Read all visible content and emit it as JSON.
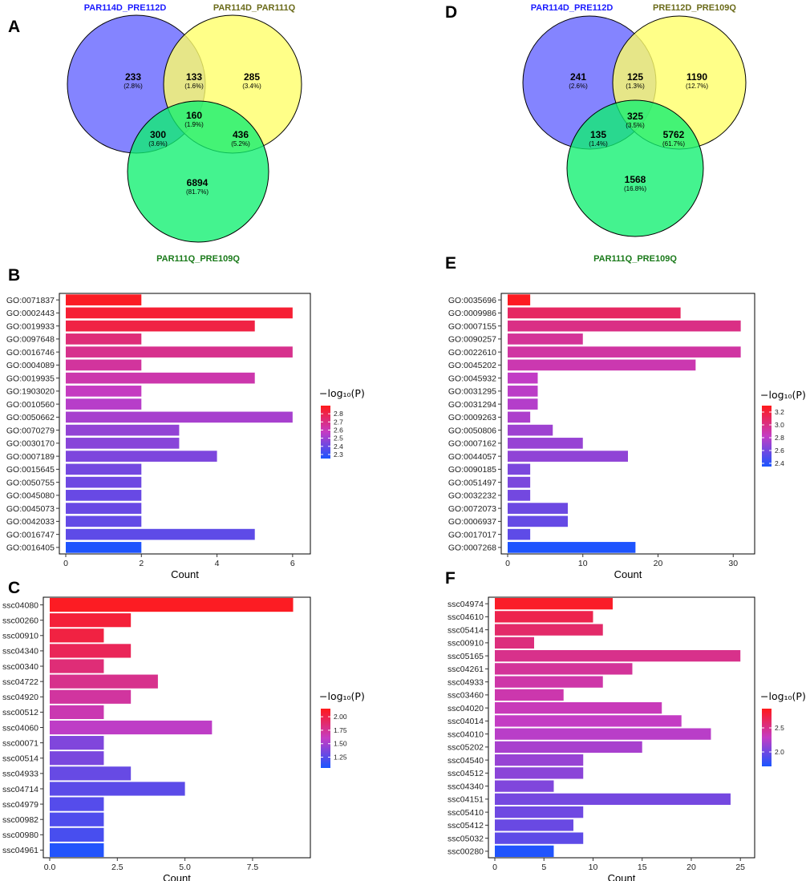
{
  "panel_letters": {
    "A": "A",
    "B": "B",
    "C": "C",
    "D": "D",
    "E": "E",
    "F": "F"
  },
  "colors": {
    "venn_blue": "#7b7bff",
    "venn_yellow": "#ffff80",
    "venn_green": "#1ff57a",
    "label_blue": "#1a1aff",
    "label_olive": "#6b6b1a",
    "label_green": "#1a7a1a",
    "grad_high": "#ff1a1a",
    "grad_mid": "#c43cc4",
    "grad_low": "#1a55ff"
  },
  "legend_title": "−log₁₀(P)",
  "chart_data": [
    {
      "type": "venn",
      "panel": "A",
      "sets": [
        "PAR114D_PRE112D",
        "PAR114D_PAR111Q",
        "PAR111Q_PRE109Q"
      ],
      "regions": {
        "a_only": {
          "count": "233",
          "pct": "(2.8%)"
        },
        "ab": {
          "count": "133",
          "pct": "(1.6%)"
        },
        "b_only": {
          "count": "285",
          "pct": "(3.4%)"
        },
        "ac": {
          "count": "300",
          "pct": "(3.6%)"
        },
        "abc": {
          "count": "160",
          "pct": "(1.9%)"
        },
        "bc": {
          "count": "436",
          "pct": "(5.2%)"
        },
        "c_only": {
          "count": "6894",
          "pct": "(81.7%)"
        }
      }
    },
    {
      "type": "venn",
      "panel": "D",
      "sets": [
        "PAR114D_PRE112D",
        "PRE112D_PRE109Q",
        "PAR111Q_PRE109Q"
      ],
      "regions": {
        "a_only": {
          "count": "241",
          "pct": "(2.6%)"
        },
        "ab": {
          "count": "125",
          "pct": "(1.3%)"
        },
        "b_only": {
          "count": "1190",
          "pct": "(12.7%)"
        },
        "ac": {
          "count": "135",
          "pct": "(1.4%)"
        },
        "abc": {
          "count": "325",
          "pct": "(3.5%)"
        },
        "bc": {
          "count": "5762",
          "pct": "(61.7%)"
        },
        "c_only": {
          "count": "1568",
          "pct": "(16.8%)"
        }
      }
    },
    {
      "type": "bar",
      "orientation": "horizontal",
      "panel": "B",
      "xlabel": "Count",
      "xlim": [
        0,
        6.3
      ],
      "xticks": [
        "0",
        "2",
        "4",
        "6"
      ],
      "xtick_values": [
        0,
        2,
        4,
        6
      ],
      "categories": [
        "GO:0071837",
        "GO:0002443",
        "GO:0019933",
        "GO:0097648",
        "GO:0016746",
        "GO:0004089",
        "GO:0019935",
        "GO:1903020",
        "GO:0010560",
        "GO:0050662",
        "GO:0070279",
        "GO:0030170",
        "GO:0007189",
        "GO:0015645",
        "GO:0050755",
        "GO:0045080",
        "GO:0045073",
        "GO:0042033",
        "GO:0016747",
        "GO:0016405"
      ],
      "values": [
        2,
        6,
        5,
        2,
        6,
        2,
        5,
        2,
        2,
        6,
        3,
        3,
        4,
        2,
        2,
        2,
        2,
        2,
        5,
        2
      ],
      "neglog10p": [
        2.88,
        2.85,
        2.82,
        2.72,
        2.68,
        2.65,
        2.62,
        2.58,
        2.55,
        2.52,
        2.48,
        2.46,
        2.44,
        2.42,
        2.41,
        2.4,
        2.4,
        2.39,
        2.38,
        2.26
      ],
      "color_range": [
        2.25,
        2.9
      ],
      "legend_ticks": [
        "2.8",
        "2.7",
        "2.6",
        "2.5",
        "2.4",
        "2.3"
      ],
      "legend_tick_values": [
        2.8,
        2.7,
        2.6,
        2.5,
        2.4,
        2.3
      ]
    },
    {
      "type": "bar",
      "orientation": "horizontal",
      "panel": "E",
      "xlabel": "Count",
      "xlim": [
        0,
        32
      ],
      "xticks": [
        "0",
        "10",
        "20",
        "30"
      ],
      "xtick_values": [
        0,
        10,
        20,
        30
      ],
      "categories": [
        "GO:0035696",
        "GO:0009986",
        "GO:0007155",
        "GO:0090257",
        "GO:0022610",
        "GO:0045202",
        "GO:0045932",
        "GO:0031295",
        "GO:0031294",
        "GO:0009263",
        "GO:0050806",
        "GO:0007162",
        "GO:0044057",
        "GO:0090185",
        "GO:0051497",
        "GO:0032232",
        "GO:0072073",
        "GO:0006937",
        "GO:0017017",
        "GO:0007268"
      ],
      "values": [
        3,
        23,
        31,
        10,
        31,
        25,
        4,
        4,
        4,
        3,
        6,
        10,
        16,
        3,
        3,
        3,
        8,
        8,
        3,
        17
      ],
      "neglog10p": [
        3.28,
        3.1,
        3.0,
        2.95,
        2.92,
        2.88,
        2.82,
        2.8,
        2.78,
        2.76,
        2.72,
        2.7,
        2.68,
        2.62,
        2.62,
        2.6,
        2.58,
        2.56,
        2.54,
        2.36
      ],
      "color_range": [
        2.35,
        3.3
      ],
      "legend_ticks": [
        "3.2",
        "3.0",
        "2.8",
        "2.6",
        "2.4"
      ],
      "legend_tick_values": [
        3.2,
        3.0,
        2.8,
        2.6,
        2.4
      ]
    },
    {
      "type": "bar",
      "orientation": "horizontal",
      "panel": "C",
      "xlabel": "Count",
      "xlim": [
        0,
        9.4
      ],
      "xticks": [
        "0.0",
        "2.5",
        "5.0",
        "7.5"
      ],
      "xtick_values": [
        0,
        2.5,
        5,
        7.5
      ],
      "categories": [
        "ssc04080",
        "ssc00260",
        "ssc00910",
        "ssc04340",
        "ssc00340",
        "ssc04722",
        "ssc04920",
        "ssc00512",
        "ssc04060",
        "ssc00071",
        "ssc00514",
        "ssc04933",
        "ssc04714",
        "ssc04979",
        "ssc00982",
        "ssc00980",
        "ssc04961"
      ],
      "values": [
        9,
        3,
        2,
        3,
        2,
        4,
        3,
        2,
        6,
        2,
        2,
        3,
        5,
        2,
        2,
        2,
        2
      ],
      "neglog10p": [
        2.12,
        2.05,
        2.02,
        1.95,
        1.85,
        1.78,
        1.72,
        1.66,
        1.58,
        1.38,
        1.36,
        1.3,
        1.26,
        1.24,
        1.22,
        1.2,
        1.08
      ],
      "color_range": [
        1.05,
        2.15
      ],
      "legend_ticks": [
        "2.00",
        "1.75",
        "1.50",
        "1.25"
      ],
      "legend_tick_values": [
        2.0,
        1.75,
        1.5,
        1.25
      ]
    },
    {
      "type": "bar",
      "orientation": "horizontal",
      "panel": "F",
      "xlabel": "Count",
      "xlim": [
        0,
        25.8
      ],
      "xticks": [
        "0",
        "5",
        "10",
        "15",
        "20",
        "25"
      ],
      "xtick_values": [
        0,
        5,
        10,
        15,
        20,
        25
      ],
      "categories": [
        "ssc04974",
        "ssc04610",
        "ssc05414",
        "ssc00910",
        "ssc05165",
        "ssc04261",
        "ssc04933",
        "ssc03460",
        "ssc04020",
        "ssc04014",
        "ssc04010",
        "ssc05202",
        "ssc04540",
        "ssc04512",
        "ssc04340",
        "ssc04151",
        "ssc05410",
        "ssc05412",
        "ssc05032",
        "ssc00280"
      ],
      "values": [
        12,
        10,
        11,
        4,
        25,
        14,
        11,
        7,
        17,
        19,
        22,
        15,
        9,
        9,
        6,
        24,
        9,
        8,
        9,
        6
      ],
      "neglog10p": [
        2.85,
        2.72,
        2.62,
        2.55,
        2.5,
        2.45,
        2.4,
        2.38,
        2.34,
        2.3,
        2.26,
        2.2,
        2.14,
        2.1,
        2.06,
        2.02,
        2.0,
        1.98,
        1.94,
        1.72
      ],
      "color_range": [
        1.7,
        2.9
      ],
      "legend_ticks": [
        "2.5",
        "2.0"
      ],
      "legend_tick_values": [
        2.5,
        2.0
      ]
    }
  ]
}
